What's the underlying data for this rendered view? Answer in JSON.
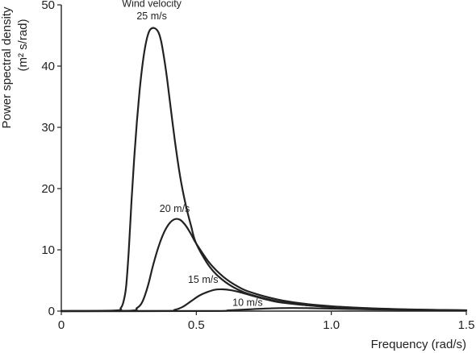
{
  "chart_data": {
    "type": "line",
    "title": "",
    "xlabel": "Frequency (rad/s)",
    "ylabel": [
      "Power spectral density",
      "(m² s/rad)"
    ],
    "xlim": [
      0,
      1.5
    ],
    "ylim": [
      0,
      50
    ],
    "x_ticks": [
      {
        "value": 0,
        "label": "0"
      },
      {
        "value": 0.5,
        "label": "0.5"
      },
      {
        "value": 1.0,
        "label": "1.0"
      },
      {
        "value": 1.5,
        "label": "1.5"
      }
    ],
    "y_ticks": [
      {
        "value": 0,
        "label": "0"
      },
      {
        "value": 10,
        "label": "10"
      },
      {
        "value": 20,
        "label": "20"
      },
      {
        "value": 30,
        "label": "30"
      },
      {
        "value": 40,
        "label": "40"
      },
      {
        "value": 50,
        "label": "50"
      }
    ],
    "grid": false,
    "legend": "none",
    "line_color": "#222222",
    "series": [
      {
        "name": "25 m/s",
        "points": [
          [
            0.0,
            0
          ],
          [
            0.2,
            0.1
          ],
          [
            0.22,
            0.5
          ],
          [
            0.23,
            1.5
          ],
          [
            0.24,
            4
          ],
          [
            0.25,
            10
          ],
          [
            0.26,
            18
          ],
          [
            0.27,
            25
          ],
          [
            0.28,
            31
          ],
          [
            0.29,
            36
          ],
          [
            0.3,
            40
          ],
          [
            0.31,
            43
          ],
          [
            0.32,
            45
          ],
          [
            0.33,
            46
          ],
          [
            0.345,
            46.2
          ],
          [
            0.36,
            45.5
          ],
          [
            0.37,
            44
          ],
          [
            0.38,
            41.5
          ],
          [
            0.39,
            38.5
          ],
          [
            0.4,
            35
          ],
          [
            0.42,
            28
          ],
          [
            0.44,
            22
          ],
          [
            0.46,
            17.5
          ],
          [
            0.48,
            14
          ],
          [
            0.5,
            11
          ],
          [
            0.55,
            7.2
          ],
          [
            0.6,
            5.0
          ],
          [
            0.65,
            3.6
          ],
          [
            0.7,
            2.7
          ],
          [
            0.8,
            1.6
          ],
          [
            0.9,
            1.0
          ],
          [
            1.0,
            0.65
          ],
          [
            1.1,
            0.45
          ],
          [
            1.2,
            0.3
          ],
          [
            1.3,
            0.2
          ],
          [
            1.4,
            0.14
          ],
          [
            1.5,
            0.1
          ]
        ]
      },
      {
        "name": "20 m/s",
        "points": [
          [
            0.0,
            0
          ],
          [
            0.25,
            0.05
          ],
          [
            0.28,
            0.5
          ],
          [
            0.3,
            1.5
          ],
          [
            0.32,
            4
          ],
          [
            0.34,
            7.5
          ],
          [
            0.36,
            10.5
          ],
          [
            0.38,
            12.8
          ],
          [
            0.4,
            14.3
          ],
          [
            0.42,
            15
          ],
          [
            0.44,
            14.9
          ],
          [
            0.46,
            14
          ],
          [
            0.48,
            12.6
          ],
          [
            0.5,
            11
          ],
          [
            0.55,
            7.8
          ],
          [
            0.6,
            5.6
          ],
          [
            0.65,
            4.1
          ],
          [
            0.7,
            3.1
          ],
          [
            0.8,
            1.9
          ],
          [
            0.9,
            1.2
          ],
          [
            1.0,
            0.8
          ],
          [
            1.1,
            0.55
          ],
          [
            1.2,
            0.38
          ],
          [
            1.3,
            0.26
          ],
          [
            1.4,
            0.18
          ],
          [
            1.5,
            0.12
          ]
        ]
      },
      {
        "name": "15 m/s",
        "points": [
          [
            0.0,
            0
          ],
          [
            0.38,
            0.02
          ],
          [
            0.42,
            0.2
          ],
          [
            0.45,
            0.7
          ],
          [
            0.48,
            1.6
          ],
          [
            0.51,
            2.5
          ],
          [
            0.54,
            3.1
          ],
          [
            0.57,
            3.5
          ],
          [
            0.6,
            3.55
          ],
          [
            0.63,
            3.4
          ],
          [
            0.66,
            3.1
          ],
          [
            0.7,
            2.6
          ],
          [
            0.75,
            2.0
          ],
          [
            0.8,
            1.5
          ],
          [
            0.9,
            1.0
          ],
          [
            1.0,
            0.7
          ],
          [
            1.1,
            0.5
          ],
          [
            1.2,
            0.35
          ],
          [
            1.3,
            0.25
          ],
          [
            1.4,
            0.18
          ],
          [
            1.5,
            0.13
          ]
        ]
      },
      {
        "name": "10 m/s",
        "points": [
          [
            0.0,
            0
          ],
          [
            0.55,
            0.02
          ],
          [
            0.62,
            0.12
          ],
          [
            0.7,
            0.3
          ],
          [
            0.78,
            0.45
          ],
          [
            0.85,
            0.5
          ],
          [
            0.92,
            0.48
          ],
          [
            1.0,
            0.4
          ],
          [
            1.1,
            0.32
          ],
          [
            1.2,
            0.25
          ],
          [
            1.3,
            0.2
          ],
          [
            1.4,
            0.15
          ],
          [
            1.5,
            0.12
          ]
        ]
      }
    ],
    "annotations": [
      {
        "text": "Wind velocity",
        "x": 0.335,
        "y": 49.7
      },
      {
        "text": "25 m/s",
        "x": 0.335,
        "y": 47.6
      },
      {
        "text": "20 m/s",
        "x": 0.42,
        "y": 16.2
      },
      {
        "text": "15 m/s",
        "x": 0.525,
        "y": 4.6
      },
      {
        "text": "10 m/s",
        "x": 0.69,
        "y": 0.85
      }
    ]
  }
}
